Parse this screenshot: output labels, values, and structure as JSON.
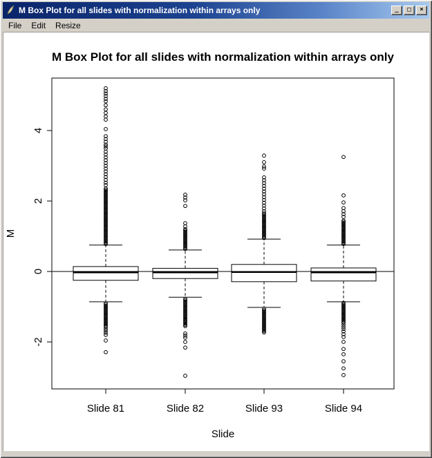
{
  "window": {
    "title": "M Box Plot for all slides with normalization within arrays only",
    "controls": [
      {
        "name": "minimize",
        "glyph": "_"
      },
      {
        "name": "maximize",
        "glyph": "□"
      },
      {
        "name": "close",
        "glyph": "×"
      }
    ]
  },
  "menu": {
    "items": [
      "File",
      "Edit",
      "Resize"
    ]
  },
  "chart_data": {
    "type": "boxplot",
    "title": "M Box Plot for all slides with normalization within arrays only",
    "xlabel": "Slide",
    "ylabel": "M",
    "categories": [
      "Slide 81",
      "Slide 82",
      "Slide 93",
      "Slide 94"
    ],
    "yticks": [
      -2,
      0,
      2,
      4
    ],
    "ylim": [
      -3.1,
      5.5
    ],
    "hline": 0,
    "grid": false,
    "legend": null,
    "series": [
      {
        "label": "Slide 81",
        "median": -0.03,
        "q1": -0.25,
        "q3": 0.14,
        "whisker_low": -0.86,
        "whisker_high": 0.75,
        "outliers_high_dense": [
          0.78,
          2.37
        ],
        "outliers_high": [
          2.45,
          2.52,
          2.6,
          2.68,
          2.76,
          2.84,
          2.92,
          3.0,
          3.08,
          3.16,
          3.24,
          3.32,
          3.4,
          3.49,
          3.55,
          3.6,
          3.68,
          3.76,
          3.84,
          4.04,
          4.31,
          4.4,
          4.5,
          4.6,
          4.72,
          4.83,
          4.9,
          4.98,
          5.05,
          5.12,
          5.2
        ],
        "outliers_low_dense": [
          -1.57,
          -0.9
        ],
        "outliers_low": [
          -1.63,
          -1.68,
          -1.74,
          -1.8,
          -1.96,
          -2.29
        ]
      },
      {
        "label": "Slide 82",
        "median": -0.03,
        "q1": -0.2,
        "q3": 0.09,
        "whisker_low": -0.73,
        "whisker_high": 0.61,
        "outliers_high_dense": [
          0.64,
          1.22
        ],
        "outliers_high": [
          1.28,
          1.37,
          1.86,
          2.02,
          2.1,
          2.18
        ],
        "outliers_low_dense": [
          -1.55,
          -0.76
        ],
        "outliers_low": [
          -1.76,
          -1.82,
          -1.88,
          -2.0,
          -2.16,
          -2.96
        ]
      },
      {
        "label": "Slide 93",
        "median": -0.02,
        "q1": -0.29,
        "q3": 0.2,
        "whisker_low": -1.02,
        "whisker_high": 0.92,
        "outliers_high_dense": [
          0.95,
          1.65
        ],
        "outliers_high": [
          1.71,
          1.79,
          1.87,
          1.95,
          2.03,
          2.11,
          2.19,
          2.27,
          2.35,
          2.43,
          2.51,
          2.59,
          2.67,
          2.92,
          2.98,
          3.1,
          3.29
        ],
        "outliers_low_dense": [
          -1.73,
          -1.05
        ],
        "outliers_low": []
      },
      {
        "label": "Slide 94",
        "median": -0.03,
        "q1": -0.27,
        "q3": 0.1,
        "whisker_low": -0.86,
        "whisker_high": 0.75,
        "outliers_high_dense": [
          0.78,
          1.47
        ],
        "outliers_high": [
          1.55,
          1.63,
          1.71,
          1.8,
          1.96,
          2.16,
          3.25
        ],
        "outliers_low_dense": [
          -1.45,
          -0.88
        ],
        "outliers_low": [
          -1.51,
          -1.57,
          -1.63,
          -1.7,
          -1.78,
          -1.86,
          -2.0,
          -2.2,
          -2.35,
          -2.55,
          -2.75,
          -2.94
        ]
      }
    ]
  }
}
